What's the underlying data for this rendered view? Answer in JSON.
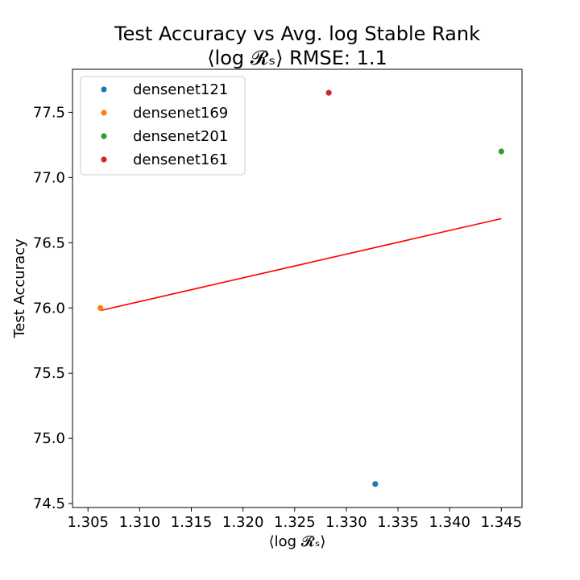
{
  "chart_data": {
    "type": "scatter",
    "title": "Test Accuracy vs Avg. log Stable Rank",
    "subtitle": "⟨log 𝓡ₛ⟩ RMSE: 1.1",
    "xlabel": "⟨log 𝓡ₛ⟩",
    "ylabel": "Test Accuracy",
    "xlim": [
      1.3035,
      1.347
    ],
    "ylim": [
      74.47,
      77.83
    ],
    "xticks": [
      1.305,
      1.31,
      1.315,
      1.32,
      1.325,
      1.33,
      1.335,
      1.34,
      1.345
    ],
    "xtick_labels": [
      "1.305",
      "1.310",
      "1.315",
      "1.320",
      "1.325",
      "1.330",
      "1.335",
      "1.340",
      "1.345"
    ],
    "yticks": [
      74.5,
      75.0,
      75.5,
      76.0,
      76.5,
      77.0,
      77.5
    ],
    "ytick_labels": [
      "74.5",
      "75.0",
      "75.5",
      "76.0",
      "76.5",
      "77.0",
      "77.5"
    ],
    "grid": false,
    "legend_position": "top-left",
    "series": [
      {
        "name": "densenet121",
        "color": "#1f77b4",
        "x": [
          1.3328
        ],
        "y": [
          74.65
        ]
      },
      {
        "name": "densenet169",
        "color": "#ff7f0e",
        "x": [
          1.3062
        ],
        "y": [
          76.0
        ]
      },
      {
        "name": "densenet201",
        "color": "#2ca02c",
        "x": [
          1.345
        ],
        "y": [
          77.2
        ]
      },
      {
        "name": "densenet161",
        "color": "#d62728",
        "x": [
          1.3283
        ],
        "y": [
          77.65
        ]
      }
    ],
    "fit_line": {
      "color": "#ff0000",
      "x": [
        1.3062,
        1.345
      ],
      "y": [
        75.98,
        76.685
      ]
    }
  }
}
